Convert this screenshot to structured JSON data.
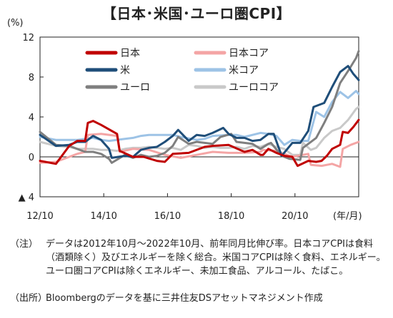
{
  "title": "【日本･米国･ユーロ圏CPI】",
  "note_label": "（注）",
  "note_text": "データは2012年10月～2022年10月、前年同月比伸び率。日本コアCPIは食料（酒類除く）及びエネルギーを除く総合。米国コアCPIは除く食料、エネルギー。ユーロ圏コアCPIは除くエネルギー、未加工食品、アルコール、たばこ。",
  "source_label": "（出所）",
  "source_text": "Bloombergのデータを基に三井住友DSアセットマネジメント作成",
  "chart_data": {
    "type": "line",
    "y_unit_label": "(%)",
    "x_unit_label": "(年/月)",
    "ylim": [
      -4,
      12
    ],
    "y_ticks": [
      12,
      8,
      4,
      0,
      -4
    ],
    "y_tick_labels": [
      "12",
      "8",
      "4",
      "0",
      "▲ 4"
    ],
    "x_range": [
      "2012-10",
      "2022-10"
    ],
    "x_tick_labels": [
      "12/10",
      "14/10",
      "16/10",
      "18/10",
      "20/10"
    ],
    "x_tick_dates": [
      "2012-10",
      "2014-10",
      "2016-10",
      "2018-10",
      "2020-10"
    ],
    "grid": false,
    "legend_position": "top-left inside",
    "series": [
      {
        "name": "日本",
        "color": "#c00000",
        "points": [
          [
            "2012-10",
            -0.4
          ],
          [
            "2013-04",
            -0.7
          ],
          [
            "2013-09",
            1.1
          ],
          [
            "2013-12",
            1.6
          ],
          [
            "2014-03",
            1.6
          ],
          [
            "2014-04",
            3.4
          ],
          [
            "2014-06",
            3.6
          ],
          [
            "2014-09",
            3.2
          ],
          [
            "2015-03",
            2.3
          ],
          [
            "2015-04",
            0.6
          ],
          [
            "2015-09",
            0.0
          ],
          [
            "2016-01",
            0.0
          ],
          [
            "2016-06",
            -0.4
          ],
          [
            "2016-09",
            -0.5
          ],
          [
            "2016-12",
            0.3
          ],
          [
            "2017-06",
            0.4
          ],
          [
            "2017-12",
            1.0
          ],
          [
            "2018-03",
            1.1
          ],
          [
            "2018-09",
            1.2
          ],
          [
            "2019-03",
            0.5
          ],
          [
            "2019-06",
            0.7
          ],
          [
            "2019-09",
            0.2
          ],
          [
            "2019-10",
            0.2
          ],
          [
            "2019-12",
            0.8
          ],
          [
            "2020-03",
            0.4
          ],
          [
            "2020-06",
            0.1
          ],
          [
            "2020-09",
            0.0
          ],
          [
            "2020-11",
            -0.9
          ],
          [
            "2021-03",
            -0.4
          ],
          [
            "2021-06",
            -0.5
          ],
          [
            "2021-08",
            -0.4
          ],
          [
            "2021-10",
            0.1
          ],
          [
            "2021-12",
            0.8
          ],
          [
            "2022-03",
            1.2
          ],
          [
            "2022-04",
            2.5
          ],
          [
            "2022-06",
            2.4
          ],
          [
            "2022-08",
            3.0
          ],
          [
            "2022-10",
            3.7
          ]
        ]
      },
      {
        "name": "日本コア",
        "color": "#f4a5a5",
        "points": [
          [
            "2012-10",
            -0.6
          ],
          [
            "2013-04",
            -0.5
          ],
          [
            "2013-09",
            0.0
          ],
          [
            "2013-12",
            0.3
          ],
          [
            "2014-03",
            0.5
          ],
          [
            "2014-04",
            2.2
          ],
          [
            "2014-09",
            2.3
          ],
          [
            "2015-03",
            2.1
          ],
          [
            "2015-04",
            0.5
          ],
          [
            "2015-09",
            0.8
          ],
          [
            "2016-03",
            0.7
          ],
          [
            "2016-09",
            0.2
          ],
          [
            "2017-03",
            -0.1
          ],
          [
            "2017-09",
            0.2
          ],
          [
            "2018-03",
            0.5
          ],
          [
            "2018-09",
            0.4
          ],
          [
            "2019-03",
            0.4
          ],
          [
            "2019-09",
            0.5
          ],
          [
            "2019-10",
            0.7
          ],
          [
            "2020-03",
            0.6
          ],
          [
            "2020-09",
            0.0
          ],
          [
            "2021-03",
            0.3
          ],
          [
            "2021-04",
            -0.8
          ],
          [
            "2021-08",
            -0.9
          ],
          [
            "2021-12",
            -0.7
          ],
          [
            "2022-03",
            -1.0
          ],
          [
            "2022-04",
            0.8
          ],
          [
            "2022-07",
            1.2
          ],
          [
            "2022-10",
            1.5
          ]
        ]
      },
      {
        "name": "米",
        "color": "#1f4e79",
        "points": [
          [
            "2012-10",
            2.2
          ],
          [
            "2013-04",
            1.1
          ],
          [
            "2013-09",
            1.2
          ],
          [
            "2013-12",
            1.5
          ],
          [
            "2014-03",
            1.5
          ],
          [
            "2014-06",
            2.1
          ],
          [
            "2014-09",
            1.7
          ],
          [
            "2014-12",
            0.8
          ],
          [
            "2015-01",
            -0.1
          ],
          [
            "2015-06",
            0.1
          ],
          [
            "2015-09",
            0.0
          ],
          [
            "2015-12",
            0.7
          ],
          [
            "2016-03",
            0.9
          ],
          [
            "2016-06",
            1.0
          ],
          [
            "2016-09",
            1.5
          ],
          [
            "2016-12",
            2.1
          ],
          [
            "2017-02",
            2.7
          ],
          [
            "2017-06",
            1.6
          ],
          [
            "2017-09",
            2.2
          ],
          [
            "2017-12",
            2.1
          ],
          [
            "2018-03",
            2.4
          ],
          [
            "2018-07",
            2.9
          ],
          [
            "2018-09",
            2.3
          ],
          [
            "2018-12",
            1.9
          ],
          [
            "2019-03",
            1.9
          ],
          [
            "2019-06",
            1.6
          ],
          [
            "2019-09",
            1.7
          ],
          [
            "2019-12",
            2.3
          ],
          [
            "2020-02",
            2.3
          ],
          [
            "2020-05",
            0.1
          ],
          [
            "2020-09",
            1.4
          ],
          [
            "2020-12",
            1.4
          ],
          [
            "2021-03",
            2.6
          ],
          [
            "2021-05",
            5.0
          ],
          [
            "2021-09",
            5.4
          ],
          [
            "2021-12",
            7.0
          ],
          [
            "2022-03",
            8.5
          ],
          [
            "2022-06",
            9.1
          ],
          [
            "2022-08",
            8.3
          ],
          [
            "2022-10",
            7.7
          ]
        ]
      },
      {
        "name": "米コア",
        "color": "#9dc3e6",
        "points": [
          [
            "2012-10",
            2.0
          ],
          [
            "2013-04",
            1.7
          ],
          [
            "2013-09",
            1.7
          ],
          [
            "2013-12",
            1.7
          ],
          [
            "2014-06",
            1.9
          ],
          [
            "2014-09",
            1.7
          ],
          [
            "2014-12",
            1.6
          ],
          [
            "2015-06",
            1.8
          ],
          [
            "2015-09",
            1.9
          ],
          [
            "2015-12",
            2.1
          ],
          [
            "2016-03",
            2.2
          ],
          [
            "2016-09",
            2.2
          ],
          [
            "2016-12",
            2.2
          ],
          [
            "2017-03",
            2.0
          ],
          [
            "2017-09",
            1.7
          ],
          [
            "2017-12",
            1.8
          ],
          [
            "2018-03",
            2.1
          ],
          [
            "2018-09",
            2.2
          ],
          [
            "2018-12",
            2.2
          ],
          [
            "2019-03",
            2.0
          ],
          [
            "2019-09",
            2.4
          ],
          [
            "2019-12",
            2.3
          ],
          [
            "2020-03",
            2.1
          ],
          [
            "2020-06",
            1.2
          ],
          [
            "2020-09",
            1.7
          ],
          [
            "2020-12",
            1.6
          ],
          [
            "2021-03",
            1.6
          ],
          [
            "2021-06",
            4.5
          ],
          [
            "2021-09",
            4.0
          ],
          [
            "2021-12",
            5.5
          ],
          [
            "2022-03",
            6.5
          ],
          [
            "2022-06",
            5.9
          ],
          [
            "2022-09",
            6.6
          ],
          [
            "2022-10",
            6.3
          ]
        ]
      },
      {
        "name": "ユーロ",
        "color": "#7f7f7f",
        "points": [
          [
            "2012-10",
            2.5
          ],
          [
            "2013-04",
            1.2
          ],
          [
            "2013-09",
            1.1
          ],
          [
            "2013-12",
            0.8
          ],
          [
            "2014-03",
            0.5
          ],
          [
            "2014-06",
            0.5
          ],
          [
            "2014-09",
            0.3
          ],
          [
            "2014-12",
            -0.2
          ],
          [
            "2015-01",
            -0.6
          ],
          [
            "2015-06",
            0.2
          ],
          [
            "2015-09",
            -0.1
          ],
          [
            "2015-12",
            0.2
          ],
          [
            "2016-03",
            0.0
          ],
          [
            "2016-06",
            0.1
          ],
          [
            "2016-09",
            0.4
          ],
          [
            "2016-12",
            1.1
          ],
          [
            "2017-02",
            2.0
          ],
          [
            "2017-06",
            1.3
          ],
          [
            "2017-09",
            1.5
          ],
          [
            "2017-12",
            1.4
          ],
          [
            "2018-03",
            1.3
          ],
          [
            "2018-06",
            2.0
          ],
          [
            "2018-10",
            2.3
          ],
          [
            "2018-12",
            1.5
          ],
          [
            "2019-03",
            1.4
          ],
          [
            "2019-06",
            1.3
          ],
          [
            "2019-09",
            0.8
          ],
          [
            "2019-12",
            1.3
          ],
          [
            "2020-01",
            1.4
          ],
          [
            "2020-05",
            0.1
          ],
          [
            "2020-08",
            -0.2
          ],
          [
            "2020-12",
            -0.3
          ],
          [
            "2021-01",
            0.9
          ],
          [
            "2021-06",
            1.9
          ],
          [
            "2021-09",
            3.4
          ],
          [
            "2021-12",
            5.0
          ],
          [
            "2022-03",
            7.4
          ],
          [
            "2022-06",
            8.6
          ],
          [
            "2022-09",
            9.9
          ],
          [
            "2022-10",
            10.6
          ]
        ]
      },
      {
        "name": "ユーロコア",
        "color": "#c9c9c9",
        "points": [
          [
            "2012-10",
            1.5
          ],
          [
            "2013-04",
            1.1
          ],
          [
            "2013-09",
            1.0
          ],
          [
            "2013-12",
            0.8
          ],
          [
            "2014-06",
            0.8
          ],
          [
            "2014-09",
            0.7
          ],
          [
            "2014-12",
            0.7
          ],
          [
            "2015-03",
            0.6
          ],
          [
            "2015-06",
            0.8
          ],
          [
            "2015-09",
            0.9
          ],
          [
            "2015-12",
            0.9
          ],
          [
            "2016-03",
            1.0
          ],
          [
            "2016-06",
            0.9
          ],
          [
            "2016-09",
            0.8
          ],
          [
            "2016-12",
            0.9
          ],
          [
            "2017-03",
            0.7
          ],
          [
            "2017-06",
            1.2
          ],
          [
            "2017-09",
            1.1
          ],
          [
            "2017-12",
            0.9
          ],
          [
            "2018-03",
            1.0
          ],
          [
            "2018-06",
            0.9
          ],
          [
            "2018-09",
            0.9
          ],
          [
            "2018-12",
            1.0
          ],
          [
            "2019-03",
            0.8
          ],
          [
            "2019-06",
            1.1
          ],
          [
            "2019-09",
            1.0
          ],
          [
            "2019-12",
            1.3
          ],
          [
            "2020-03",
            1.0
          ],
          [
            "2020-06",
            0.8
          ],
          [
            "2020-09",
            0.2
          ],
          [
            "2020-12",
            0.2
          ],
          [
            "2021-01",
            1.4
          ],
          [
            "2021-04",
            0.7
          ],
          [
            "2021-06",
            0.9
          ],
          [
            "2021-09",
            1.9
          ],
          [
            "2021-12",
            2.6
          ],
          [
            "2022-03",
            2.9
          ],
          [
            "2022-06",
            3.7
          ],
          [
            "2022-09",
            4.8
          ],
          [
            "2022-10",
            5.0
          ]
        ]
      }
    ]
  }
}
